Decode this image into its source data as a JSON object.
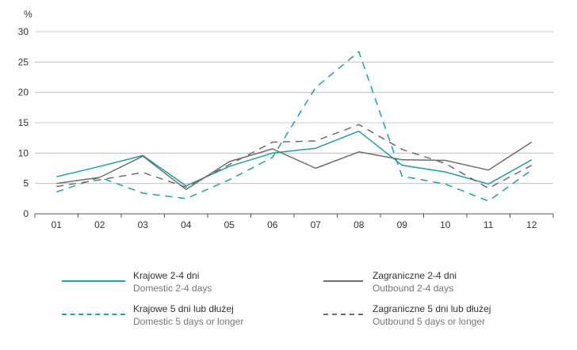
{
  "chart_data": {
    "type": "line",
    "unit_label": "%",
    "categories": [
      "01",
      "02",
      "03",
      "04",
      "05",
      "06",
      "07",
      "08",
      "09",
      "10",
      "11",
      "12"
    ],
    "y_ticks": [
      0,
      5,
      10,
      15,
      20,
      25,
      30
    ],
    "ylim": [
      0,
      30
    ],
    "grid": true,
    "legend_position": "bottom",
    "series": [
      {
        "name": "Krajowe 2-4 dni",
        "name_en": "Domestic 2-4 days",
        "color": "#1aa3a0",
        "dash": "solid",
        "values": [
          6.1,
          7.8,
          9.6,
          4.6,
          7.8,
          10.0,
          10.8,
          13.6,
          8.0,
          6.9,
          4.9,
          8.9
        ]
      },
      {
        "name": "Krajowe 5 dni lub dłużej",
        "name_en": "Domestic 5 days or longer",
        "color": "#1aa3a0",
        "dash": "dashed",
        "values": [
          3.6,
          6.0,
          3.4,
          2.5,
          5.6,
          9.3,
          20.8,
          26.7,
          6.2,
          4.9,
          2.1,
          7.2
        ]
      },
      {
        "name": "Zagraniczne 2-4 dni",
        "name_en": "Outbound 2-4 days",
        "color": "#6e6e6e",
        "dash": "solid",
        "values": [
          5.0,
          6.0,
          9.5,
          4.0,
          8.6,
          10.7,
          7.5,
          10.2,
          8.9,
          8.8,
          7.2,
          11.8
        ]
      },
      {
        "name": "Zagraniczne 5 dni lub dłużej",
        "name_en": "Outbound 5 days or longer",
        "color": "#6e6e6e",
        "dash": "dashed",
        "values": [
          4.5,
          5.6,
          6.8,
          4.4,
          8.1,
          11.8,
          12.0,
          14.7,
          10.6,
          8.3,
          4.2,
          8.0
        ]
      }
    ]
  }
}
